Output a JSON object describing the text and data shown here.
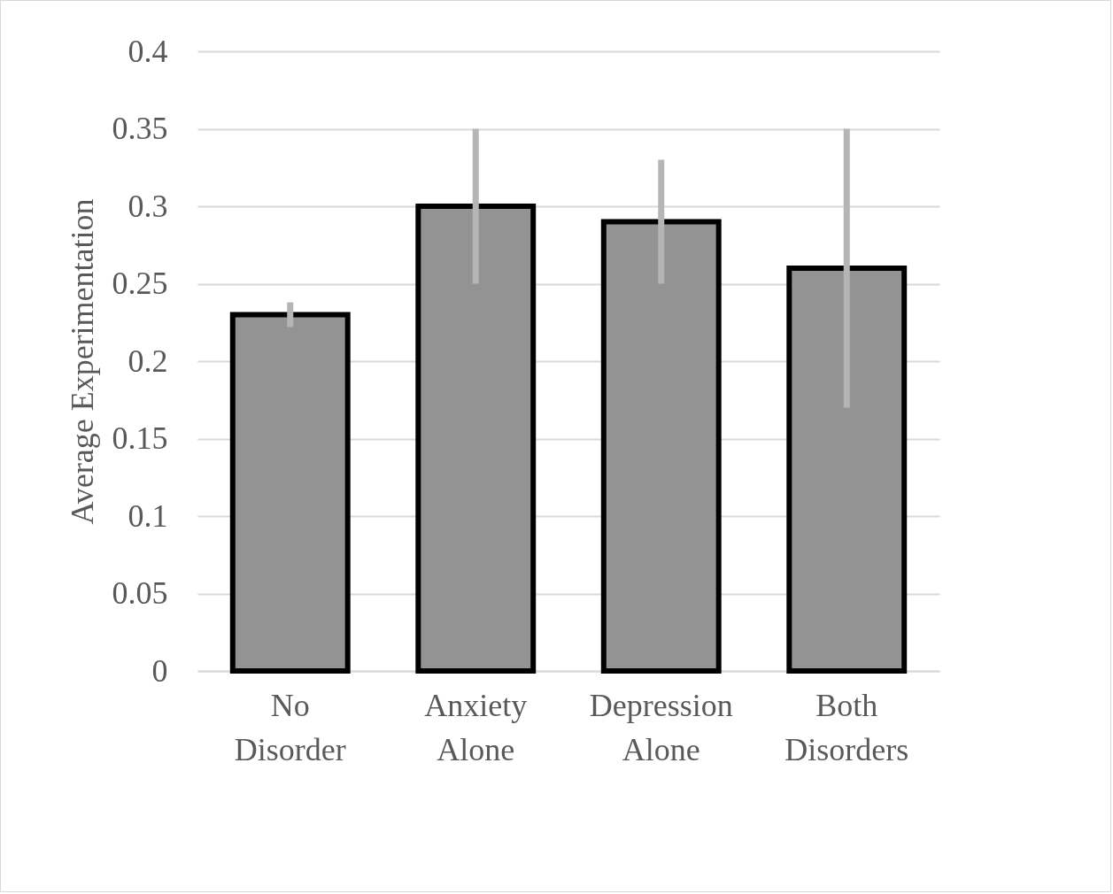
{
  "chart_data": {
    "type": "bar",
    "ylabel": "Average Experimentation",
    "categories": [
      "No Disorder",
      "Anxiety Alone",
      "Depression Alone",
      "Both Disorders"
    ],
    "values": [
      0.23,
      0.3,
      0.29,
      0.26
    ],
    "errors": [
      [
        0.222,
        0.238
      ],
      [
        0.25,
        0.35
      ],
      [
        0.25,
        0.33
      ],
      [
        0.17,
        0.35
      ]
    ],
    "color": "#939393",
    "ylim": [
      0,
      0.4
    ],
    "yticks": [
      0,
      0.05,
      0.1,
      0.15,
      0.2,
      0.25,
      0.3,
      0.35,
      0.4
    ],
    "grid": "y"
  }
}
